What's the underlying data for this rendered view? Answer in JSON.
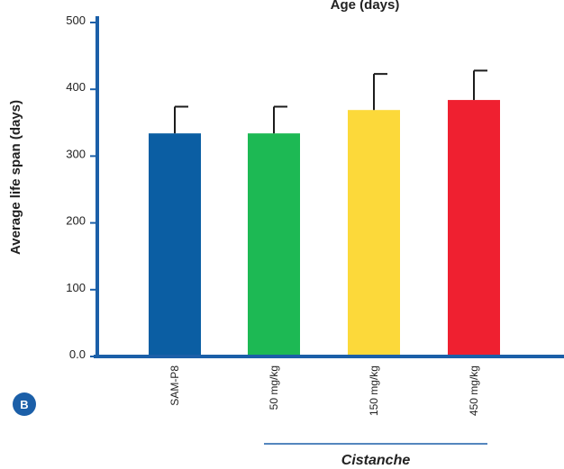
{
  "chart_data": {
    "type": "bar",
    "title": "Age (days)",
    "ylabel": "Average life span (days)",
    "ylim": [
      0,
      500
    ],
    "yticks": [
      "0.0",
      "100",
      "200",
      "300",
      "400",
      "500"
    ],
    "categories": [
      "SAM-P8",
      "50 mg/kg",
      "150 mg/kg",
      "450 mg/kg"
    ],
    "values": [
      334,
      334,
      369,
      384
    ],
    "error": [
      40,
      40,
      54,
      44
    ],
    "colors": [
      "#0b5ea3",
      "#1db954",
      "#fcd93a",
      "#ef2030"
    ],
    "axis_color": "#1b5fa8",
    "group_label": "Cistanche",
    "panel_label": "B"
  }
}
